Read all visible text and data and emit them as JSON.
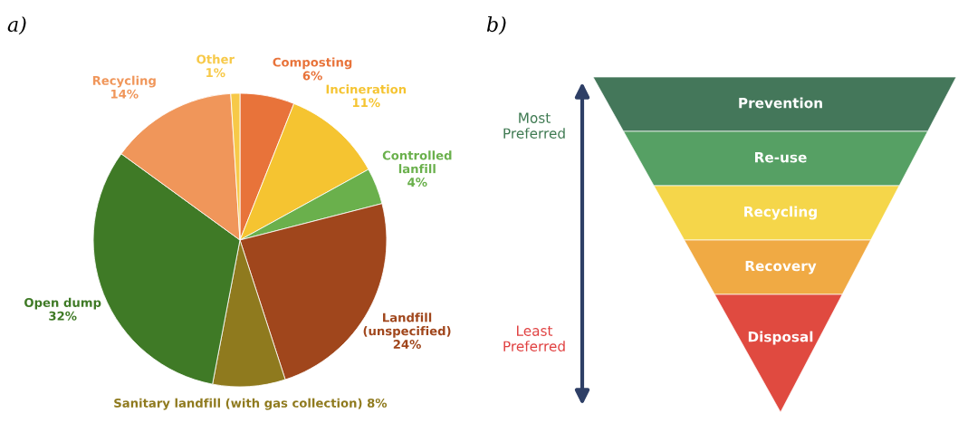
{
  "chart_data": [
    {
      "type": "pie",
      "title": "a)",
      "categories": [
        "Composting",
        "Incineration",
        "Controlled\nlanfill",
        "Landfill\n(unspecified)",
        "Sanitary landfill (with gas collection)",
        "Open dump",
        "Recycling",
        "Other"
      ],
      "values": [
        6,
        11,
        4,
        24,
        8,
        32,
        14,
        1
      ],
      "value_labels": [
        "6%",
        "11%",
        "4%",
        "24%",
        "8%",
        "32%",
        "14%",
        "1%"
      ],
      "colors": [
        "#e8733a",
        "#f5c431",
        "#6ab04c",
        "#a0461c",
        "#8f7a1e",
        "#3f7a26",
        "#f0965a",
        "#f7c948"
      ]
    },
    {
      "type": "other",
      "title": "b)",
      "categories": [
        "Prevention",
        "Re-use",
        "Recycling",
        "Recovery",
        "Disposal"
      ],
      "colors": [
        "#44775a",
        "#56a064",
        "#f5d64a",
        "#f0aa44",
        "#e04a40"
      ],
      "annotations": [
        "Most\nPreferred",
        "Least\nPreferred"
      ]
    }
  ]
}
